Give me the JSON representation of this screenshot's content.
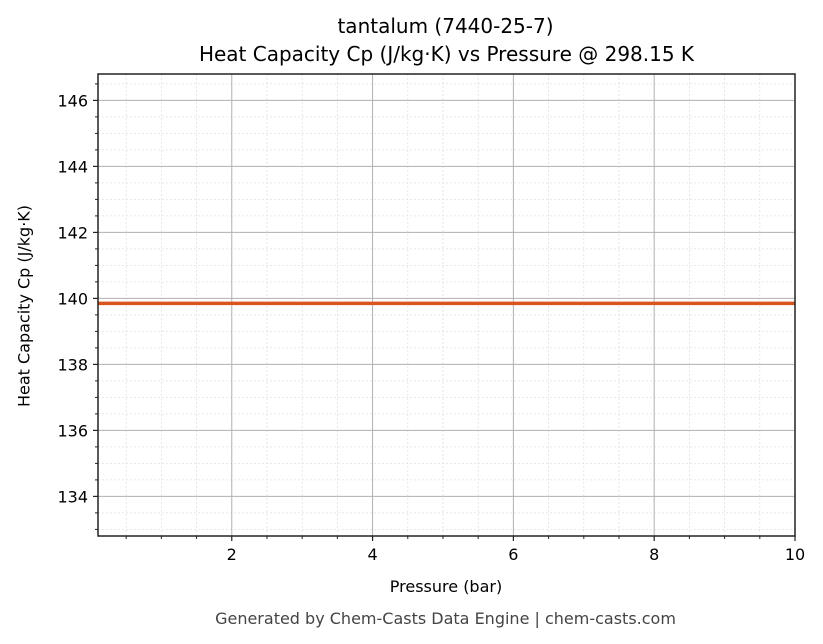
{
  "title_line1": "tantalum (7440-25-7)",
  "title_line2": "Heat Capacity Cp (J/kg·K) vs Pressure @ 298.15 K",
  "footer": "Generated by Chem-Casts Data Engine | chem-casts.com",
  "colors": {
    "line": "#d9541e",
    "major_grid": "#b0b0b0",
    "minor_grid": "#e0e0e0",
    "axes": "#222222"
  },
  "chart_data": {
    "type": "line",
    "title": "tantalum (7440-25-7)\nHeat Capacity Cp (J/kg·K) vs Pressure @ 298.15 K",
    "xlabel": "Pressure (bar)",
    "ylabel": "Heat Capacity Cp (J/kg·K)",
    "xlim": [
      0.1,
      10
    ],
    "ylim": [
      132.8,
      146.8
    ],
    "xticks": [
      2,
      4,
      6,
      8,
      10
    ],
    "yticks": [
      134,
      136,
      138,
      140,
      142,
      144,
      146
    ],
    "grid": true,
    "minor_grid": true,
    "legend": null,
    "series": [
      {
        "name": "Cp",
        "x": [
          0.1,
          1,
          2,
          3,
          4,
          5,
          6,
          7,
          8,
          9,
          10
        ],
        "values": [
          139.85,
          139.85,
          139.85,
          139.85,
          139.85,
          139.85,
          139.85,
          139.85,
          139.85,
          139.85,
          139.85
        ]
      }
    ]
  }
}
